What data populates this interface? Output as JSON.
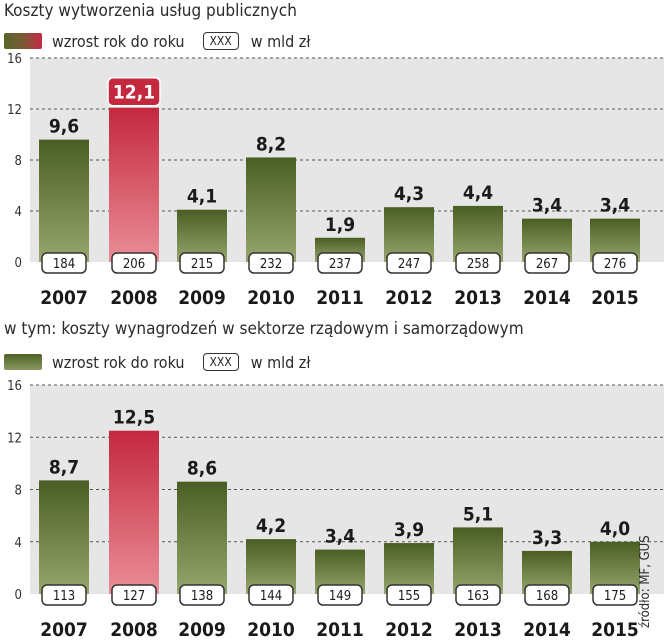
{
  "chart_data": [
    {
      "type": "bar",
      "title": "Koszty wytworzenia usług publicznych",
      "legend": {
        "growth_label": "wzrost rok do roku",
        "box_label": "XXX",
        "unit_label": "w mld zł"
      },
      "categories": [
        "2007",
        "2008",
        "2009",
        "2010",
        "2011",
        "2012",
        "2013",
        "2014",
        "2015"
      ],
      "series": [
        {
          "name": "wzrost rok do roku",
          "values": [
            9.6,
            12.1,
            4.1,
            8.2,
            1.9,
            4.3,
            4.4,
            3.4,
            3.4
          ]
        },
        {
          "name": "w mld zł",
          "values": [
            184,
            206,
            215,
            232,
            237,
            247,
            258,
            267,
            276
          ]
        }
      ],
      "value_labels": [
        "9,6",
        "12,1",
        "4,1",
        "8,2",
        "1,9",
        "4,3",
        "4,4",
        "3,4",
        "3,4"
      ],
      "amount_labels": [
        "184",
        "206",
        "215",
        "232",
        "237",
        "247",
        "258",
        "267",
        "276"
      ],
      "y_ticks": [
        "0",
        "4",
        "8",
        "12",
        "16"
      ],
      "ylim": [
        0,
        16
      ],
      "highlight_index": 1,
      "highlight_label_boxed": true,
      "grid": true
    },
    {
      "type": "bar",
      "title": "w tym: koszty wynagrodzeń w sektorze rządowym i samorządowym",
      "legend": {
        "growth_label": "wzrost rok do roku",
        "box_label": "XXX",
        "unit_label": "w mld zł"
      },
      "categories": [
        "2007",
        "2008",
        "2009",
        "2010",
        "2011",
        "2012",
        "2013",
        "2014",
        "2015"
      ],
      "series": [
        {
          "name": "wzrost rok do roku",
          "values": [
            8.7,
            12.5,
            8.6,
            4.2,
            3.4,
            3.9,
            5.1,
            3.3,
            4.0
          ]
        },
        {
          "name": "w mld zł",
          "values": [
            113,
            127,
            138,
            144,
            149,
            155,
            163,
            168,
            175
          ]
        }
      ],
      "value_labels": [
        "8,7",
        "12,5",
        "8,6",
        "4,2",
        "3,4",
        "3,9",
        "5,1",
        "3,3",
        "4,0"
      ],
      "amount_labels": [
        "113",
        "127",
        "138",
        "144",
        "149",
        "155",
        "163",
        "168",
        "175"
      ],
      "y_ticks": [
        "0",
        "4",
        "8",
        "12",
        "16"
      ],
      "ylim": [
        0,
        16
      ],
      "highlight_index": 1,
      "highlight_label_boxed": false,
      "grid": true
    }
  ],
  "source": "źródło: MF, GUS",
  "colors": {
    "bar_top": "#4a5e23",
    "bar_bottom": "#97a76e",
    "highlight_top": "#c4283f",
    "highlight_bottom": "#ea8e96",
    "plot_bg": "#e6e6e6",
    "text": "#1a1a1a"
  }
}
